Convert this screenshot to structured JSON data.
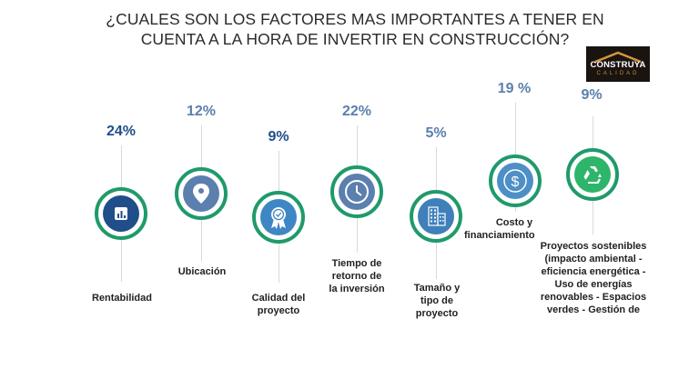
{
  "title": {
    "line1": "¿CUALES SON LOS FACTORES MAS IMPORTANTES A TENER EN",
    "line2": "CUENTA A LA HORA DE INVERTIR EN CONSTRUCCIÓN?"
  },
  "logo": {
    "name": "CONSTRUYA",
    "sub": "CALIDAD"
  },
  "colors": {
    "dark_blue": "#1f4e8a",
    "mid_blue": "#5b7fae",
    "light_blue": "#3f86c4",
    "ring_green": "#1f9a6b",
    "recycle_green": "#2db56a"
  },
  "factors": [
    {
      "percent": "24%",
      "label": "Rentabilidad",
      "icon": "chart-icon",
      "value": 24
    },
    {
      "percent": "12%",
      "label": "Ubicación",
      "icon": "location-pin-icon",
      "value": 12
    },
    {
      "percent": "9%",
      "label_lines": [
        "Calidad del",
        "proyecto"
      ],
      "icon": "award-ribbon-icon",
      "value": 9
    },
    {
      "percent": "22%",
      "label_lines": [
        "Tiempo de",
        "retorno de",
        "la inversión"
      ],
      "icon": "clock-icon",
      "value": 22
    },
    {
      "percent": "5%",
      "label_lines": [
        "Tamaño y",
        "tipo de",
        "proyecto"
      ],
      "icon": "buildings-icon",
      "value": 5
    },
    {
      "percent": "19 %",
      "label_lines": [
        "Costo y",
        "financiamiento"
      ],
      "icon": "dollar-coin-icon",
      "value": 19
    },
    {
      "percent": "9%",
      "label_lines": [
        "Proyectos sostenibles",
        "(impacto ambiental -",
        "eficiencia energética -",
        "Uso de energías",
        "renovables -  Espacios",
        "verdes - Gestión de"
      ],
      "icon": "recycle-icon",
      "value": 9
    }
  ]
}
